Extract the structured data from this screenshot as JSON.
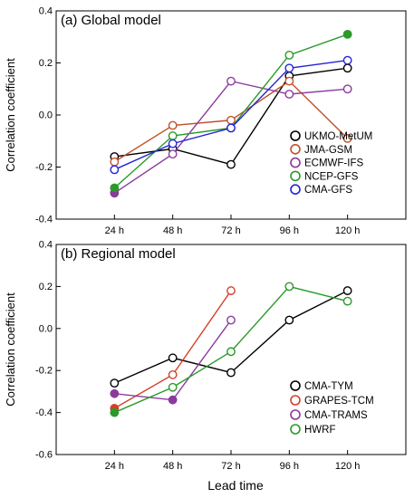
{
  "figure": {
    "xlabel": "Lead time"
  },
  "chart_data": [
    {
      "type": "line",
      "title": "(a) Global model",
      "xlabel": "",
      "ylabel": "Correlation coefficient",
      "categories": [
        "24 h",
        "48 h",
        "72 h",
        "96 h",
        "120 h"
      ],
      "ylim": [
        -0.4,
        0.4
      ],
      "yticks": [
        "-0.4",
        "-0.2",
        "0.0",
        "0.2",
        "0.4"
      ],
      "grid": false,
      "legend_position": "bottom-right",
      "series": [
        {
          "name": "UKMO-MetUM",
          "color": "#000000",
          "label_color": "#000000",
          "values": [
            -0.16,
            -0.13,
            -0.19,
            0.15,
            0.18
          ],
          "filled": [
            false,
            false,
            false,
            false,
            false
          ]
        },
        {
          "name": "JMA-GSM",
          "color": "#c0502a",
          "label_color": "#c0502a",
          "values": [
            -0.18,
            -0.04,
            -0.02,
            0.13,
            -0.09
          ],
          "filled": [
            false,
            false,
            false,
            false,
            false
          ]
        },
        {
          "name": "ECMWF-IFS",
          "color": "#8b3a9c",
          "label_color": "#8b3a9c",
          "values": [
            -0.3,
            -0.15,
            0.13,
            0.08,
            0.1
          ],
          "filled": [
            true,
            false,
            false,
            false,
            false
          ]
        },
        {
          "name": "NCEP-GFS",
          "color": "#2a9a2a",
          "label_color": "#000000",
          "values": [
            -0.28,
            -0.08,
            -0.05,
            0.23,
            0.31
          ],
          "filled": [
            true,
            false,
            false,
            false,
            true
          ]
        },
        {
          "name": "CMA-GFS",
          "color": "#2323d6",
          "label_color": "#000000",
          "values": [
            -0.21,
            -0.11,
            -0.05,
            0.18,
            0.21
          ],
          "filled": [
            false,
            false,
            false,
            false,
            false
          ]
        }
      ]
    },
    {
      "type": "line",
      "title": "(b) Regional model",
      "xlabel": "Lead time",
      "ylabel": "Correlation coefficient",
      "categories": [
        "24 h",
        "48 h",
        "72 h",
        "96 h",
        "120 h"
      ],
      "ylim": [
        -0.6,
        0.4
      ],
      "yticks": [
        "-0.6",
        "-0.4",
        "-0.2",
        "0.0",
        "0.2",
        "0.4"
      ],
      "grid": false,
      "legend_position": "bottom-right",
      "series": [
        {
          "name": "CMA-TYM",
          "color": "#000000",
          "label_color": "#000000",
          "values": [
            -0.26,
            -0.14,
            -0.21,
            0.04,
            0.18
          ],
          "filled": [
            false,
            false,
            false,
            false,
            false
          ]
        },
        {
          "name": "GRAPES-TCM",
          "color": "#d4402a",
          "label_color": "#d4402a",
          "values": [
            -0.38,
            -0.22,
            0.18,
            null,
            null
          ],
          "filled": [
            true,
            false,
            false,
            false,
            false
          ]
        },
        {
          "name": "CMA-TRAMS",
          "color": "#8b3a9c",
          "label_color": "#8b3a9c",
          "values": [
            -0.31,
            -0.34,
            0.04,
            null,
            null
          ],
          "filled": [
            true,
            true,
            false,
            false,
            false
          ]
        },
        {
          "name": "HWRF",
          "color": "#2a9a2a",
          "label_color": "#2a9a2a",
          "values": [
            -0.4,
            -0.28,
            -0.11,
            0.2,
            0.13
          ],
          "filled": [
            true,
            false,
            false,
            false,
            false
          ]
        }
      ]
    }
  ]
}
